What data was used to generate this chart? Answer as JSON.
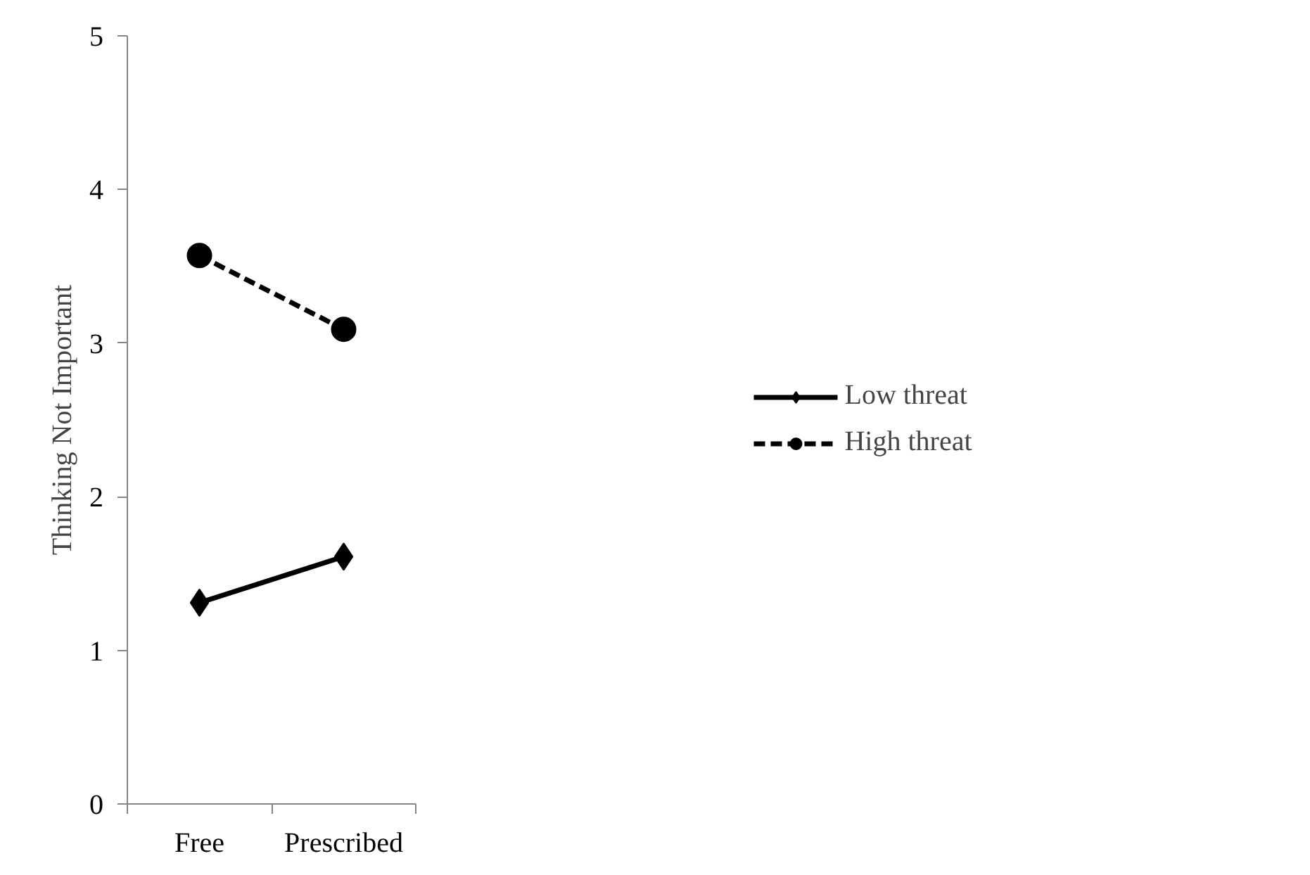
{
  "chart_data": {
    "type": "line",
    "ylabel": "Thinking Not Important",
    "categories": [
      "Free",
      "Prescribed"
    ],
    "ylim": [
      0,
      5
    ],
    "yticks": [
      0,
      1,
      2,
      3,
      4,
      5
    ],
    "grid": false,
    "legend": "right",
    "series": [
      {
        "name": "Low threat",
        "color": "#000000",
        "values": [
          1.31,
          1.61
        ],
        "marker": "diamond",
        "line_style": "solid"
      },
      {
        "name": "High threat",
        "color": "#000000",
        "values": [
          3.57,
          3.09
        ],
        "marker": "circle",
        "line_style": "dashed"
      }
    ]
  }
}
